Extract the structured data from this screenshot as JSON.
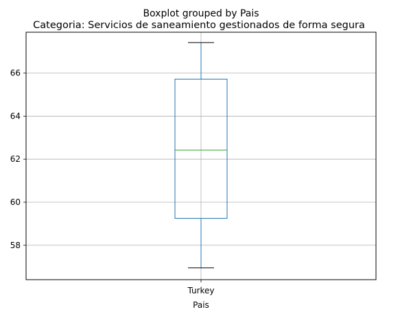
{
  "chart_data": {
    "type": "boxplot",
    "suptitle": "Boxplot grouped by Pais",
    "title": "Categoria: Servicios de saneamiento gestionados de forma segura",
    "xlabel": "Pais",
    "ylabel": "",
    "categories": [
      "Turkey"
    ],
    "boxes": [
      {
        "category": "Turkey",
        "whisker_low": 56.95,
        "q1": 59.25,
        "median": 62.42,
        "q3": 65.72,
        "whisker_high": 67.42
      }
    ],
    "ylim": [
      56.4,
      67.9
    ],
    "yticks": [
      58,
      60,
      62,
      64,
      66
    ],
    "grid": true,
    "colors": {
      "box": "#1f77b4",
      "median": "#2ca02c",
      "whisker_cap": "#000000",
      "grid": "#b0b0b0"
    }
  }
}
